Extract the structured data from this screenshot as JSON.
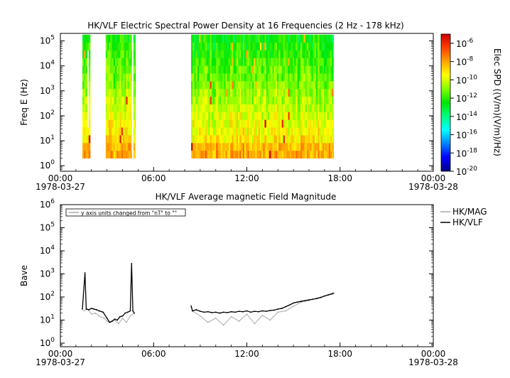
{
  "chart_data": [
    {
      "type": "heatmap",
      "title": "HK/VLF  Electric Spectral Power Density at 16 Frequencies (2 Hz - 178 kHz)",
      "xlabel": "",
      "ylabel": "Freq E (Hz)",
      "x_range": [
        "1978-03-27 00:00",
        "1978-03-28 00:00"
      ],
      "x_ticks": [
        {
          "value": "00:00",
          "date": "1978-03-27"
        },
        {
          "value": "06:00",
          "date": ""
        },
        {
          "value": "12:00",
          "date": ""
        },
        {
          "value": "18:00",
          "date": ""
        },
        {
          "value": "00:00",
          "date": "1978-03-28"
        }
      ],
      "y_scale": "log",
      "ylim": [
        0.6,
        200000
      ],
      "y_ticks": [
        {
          "b": "10",
          "e": "0"
        },
        {
          "b": "10",
          "e": "1"
        },
        {
          "b": "10",
          "e": "2"
        },
        {
          "b": "10",
          "e": "3"
        },
        {
          "b": "10",
          "e": "4"
        },
        {
          "b": "10",
          "e": "5"
        }
      ],
      "data_intervals": [
        [
          "01:25",
          "01:55"
        ],
        [
          "02:55",
          "04:35"
        ],
        [
          "04:42",
          "04:50"
        ],
        [
          "08:25",
          "17:35"
        ]
      ],
      "freq_range_hz": [
        2,
        178000
      ],
      "colorbar": {
        "label": "Elec SPD ((V/m)(V/m)/Hz)",
        "scale": "log",
        "range_exp": [
          -20,
          -5
        ],
        "ticks": [
          {
            "b": "10",
            "e": "-6"
          },
          {
            "b": "10",
            "e": "-8"
          },
          {
            "b": "10",
            "e": "-10"
          },
          {
            "b": "10",
            "e": "-12"
          },
          {
            "b": "10",
            "e": "-14"
          },
          {
            "b": "10",
            "e": "-16"
          },
          {
            "b": "10",
            "e": "-18"
          },
          {
            "b": "10",
            "e": "-20"
          }
        ],
        "colors": [
          "#000080",
          "#0000ff",
          "#0080ff",
          "#00ffff",
          "#00ff80",
          "#00e600",
          "#80ff00",
          "#ffff00",
          "#ffa500",
          "#ff4000",
          "#cc0000"
        ]
      }
    },
    {
      "type": "line",
      "title": "HK/VLF  Average magnetic Field Magnitude",
      "xlabel": "",
      "ylabel": "Bave",
      "x_range": [
        "1978-03-27 00:00",
        "1978-03-28 00:00"
      ],
      "x_ticks": [
        {
          "value": "00:00",
          "date": "1978-03-27"
        },
        {
          "value": "06:00",
          "date": ""
        },
        {
          "value": "12:00",
          "date": ""
        },
        {
          "value": "18:00",
          "date": ""
        },
        {
          "value": "00:00",
          "date": "1978-03-28"
        }
      ],
      "y_scale": "log",
      "ylim": [
        0.7,
        1000000
      ],
      "y_ticks": [
        {
          "b": "10",
          "e": "0"
        },
        {
          "b": "10",
          "e": "1"
        },
        {
          "b": "10",
          "e": "2"
        },
        {
          "b": "10",
          "e": "3"
        },
        {
          "b": "10",
          "e": "4"
        },
        {
          "b": "10",
          "e": "5"
        },
        {
          "b": "10",
          "e": "6"
        }
      ],
      "annotation": "y axis units changed from \"nT\" to \"\"",
      "legend_position": "right",
      "series": [
        {
          "name": "HK/MAG",
          "color": "#aaaaaa",
          "points": [
            [
              "01:30",
              25
            ],
            [
              "01:45",
              30
            ],
            [
              "02:00",
              18
            ],
            [
              "02:15",
              20
            ],
            [
              "02:30",
              15
            ],
            [
              "02:50",
              12
            ],
            [
              "03:00",
              9
            ],
            [
              "03:15",
              8
            ],
            [
              "03:30",
              10
            ],
            [
              "03:45",
              7
            ],
            [
              "04:00",
              12
            ],
            [
              "04:15",
              8
            ],
            [
              "04:30",
              15
            ],
            [
              "04:45",
              20
            ],
            [
              "08:30",
              25
            ],
            [
              "09:00",
              15
            ],
            [
              "09:30",
              8
            ],
            [
              "10:00",
              12
            ],
            [
              "10:30",
              6
            ],
            [
              "11:00",
              14
            ],
            [
              "11:30",
              9
            ],
            [
              "12:00",
              18
            ],
            [
              "12:30",
              7
            ],
            [
              "13:00",
              16
            ],
            [
              "13:30",
              10
            ],
            [
              "14:00",
              22
            ],
            [
              "14:30",
              25
            ],
            [
              "15:00",
              40
            ],
            [
              "15:30",
              60
            ],
            [
              "16:00",
              70
            ],
            [
              "16:30",
              90
            ],
            [
              "17:00",
              110
            ],
            [
              "17:30",
              130
            ]
          ]
        },
        {
          "name": "HK/VLF",
          "color": "#000000",
          "points": [
            [
              "01:25",
              30
            ],
            [
              "01:35",
              1100
            ],
            [
              "01:40",
              30
            ],
            [
              "01:50",
              28
            ],
            [
              "02:00",
              32
            ],
            [
              "02:10",
              30
            ],
            [
              "02:20",
              28
            ],
            [
              "02:30",
              25
            ],
            [
              "02:45",
              22
            ],
            [
              "03:00",
              12
            ],
            [
              "03:10",
              8
            ],
            [
              "03:20",
              9
            ],
            [
              "03:30",
              11
            ],
            [
              "03:40",
              10
            ],
            [
              "03:50",
              14
            ],
            [
              "04:00",
              15
            ],
            [
              "04:10",
              20
            ],
            [
              "04:20",
              22
            ],
            [
              "04:30",
              25
            ],
            [
              "04:35",
              2800
            ],
            [
              "04:40",
              25
            ],
            [
              "04:45",
              20
            ],
            [
              "08:25",
              40
            ],
            [
              "08:30",
              25
            ],
            [
              "08:45",
              28
            ],
            [
              "09:00",
              24
            ],
            [
              "09:15",
              22
            ],
            [
              "09:30",
              23
            ],
            [
              "09:45",
              21
            ],
            [
              "10:00",
              22
            ],
            [
              "10:15",
              20
            ],
            [
              "10:30",
              22
            ],
            [
              "10:45",
              21
            ],
            [
              "11:00",
              23
            ],
            [
              "11:15",
              22
            ],
            [
              "11:30",
              24
            ],
            [
              "11:45",
              23
            ],
            [
              "12:00",
              25
            ],
            [
              "12:15",
              22
            ],
            [
              "12:30",
              24
            ],
            [
              "12:45",
              23
            ],
            [
              "13:00",
              25
            ],
            [
              "13:15",
              24
            ],
            [
              "13:30",
              26
            ],
            [
              "13:45",
              27
            ],
            [
              "14:00",
              30
            ],
            [
              "14:15",
              32
            ],
            [
              "14:30",
              38
            ],
            [
              "14:45",
              45
            ],
            [
              "15:00",
              55
            ],
            [
              "15:15",
              60
            ],
            [
              "15:30",
              65
            ],
            [
              "15:45",
              70
            ],
            [
              "16:00",
              75
            ],
            [
              "16:15",
              80
            ],
            [
              "16:30",
              85
            ],
            [
              "16:45",
              95
            ],
            [
              "17:00",
              110
            ],
            [
              "17:15",
              125
            ],
            [
              "17:30",
              140
            ],
            [
              "17:35",
              145
            ]
          ]
        }
      ]
    }
  ]
}
